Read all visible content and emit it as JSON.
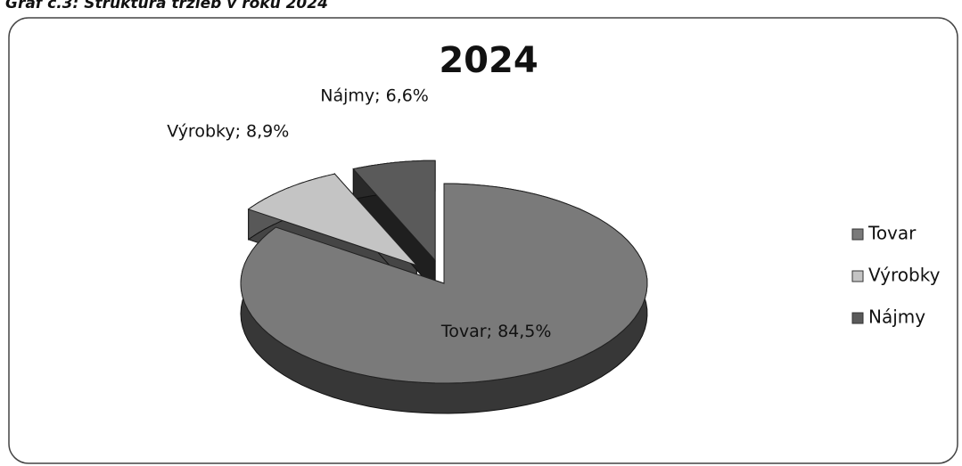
{
  "chart_data": {
    "type": "pie3d",
    "caption": "Graf č.3: Štruktúra tržieb v roku 2024",
    "title": "2024",
    "categories": [
      "Tovar",
      "Výrobky",
      "Nájmy"
    ],
    "values": [
      84.5,
      8.9,
      6.6
    ],
    "value_labels": [
      "Tovar; 84,5%",
      "Výrobky; 8,9%",
      "Nájmy; 6,6%"
    ],
    "colors": [
      "#7a7a7a",
      "#c4c4c4",
      "#5a5a5a"
    ],
    "legend": "right"
  }
}
